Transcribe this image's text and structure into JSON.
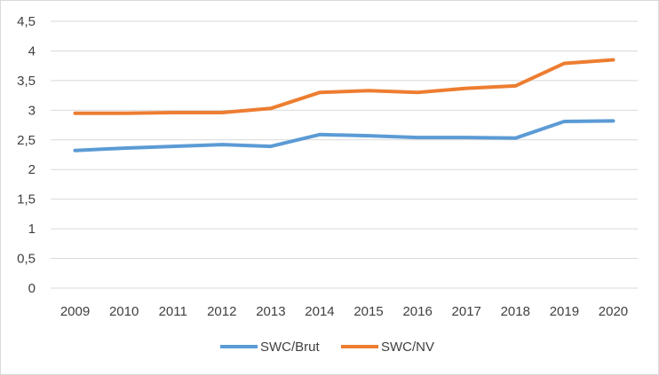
{
  "chart_data": {
    "type": "line",
    "categories": [
      "2009",
      "2010",
      "2011",
      "2012",
      "2013",
      "2014",
      "2015",
      "2016",
      "2017",
      "2018",
      "2019",
      "2020"
    ],
    "series": [
      {
        "name": "SWC/Brut",
        "color": "#5b9bd5",
        "values": [
          2.32,
          2.36,
          2.39,
          2.42,
          2.39,
          2.59,
          2.57,
          2.54,
          2.54,
          2.53,
          2.81,
          2.82
        ]
      },
      {
        "name": "SWC/NV",
        "color": "#ed7d31",
        "values": [
          2.95,
          2.95,
          2.96,
          2.96,
          3.03,
          3.3,
          3.33,
          3.3,
          3.37,
          3.41,
          3.79,
          3.85
        ]
      }
    ],
    "ylim": [
      0,
      4.5
    ],
    "yticks": [
      "0",
      "0,5",
      "1",
      "1,5",
      "2",
      "2,5",
      "3",
      "3,5",
      "4",
      "4,5"
    ],
    "grid": true,
    "legend_position": "bottom"
  }
}
